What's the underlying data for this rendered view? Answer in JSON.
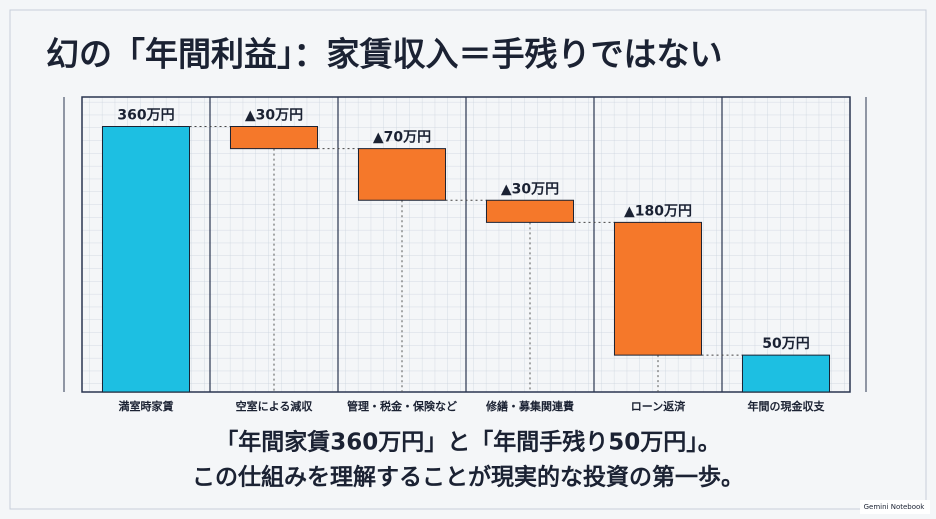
{
  "chart_data": {
    "type": "waterfall",
    "title": "幻の「年間利益」：家賃収入＝手残りではない",
    "categories": [
      "満室時家賃",
      "空室による減収",
      "管理・税金・保険など",
      "修繕・募集関連費",
      "ローン返済",
      "年間の現金収支"
    ],
    "values": [
      360,
      -30,
      -70,
      -30,
      -180,
      50
    ],
    "value_labels": [
      "360万円",
      "▲30万円",
      "▲70万円",
      "▲30万円",
      "▲180万円",
      "50万円"
    ],
    "colors": [
      "#1dbfe2",
      "#f5782a",
      "#f5782a",
      "#f5782a",
      "#f5782a",
      "#1dbfe2"
    ],
    "ylim": [
      0,
      400
    ],
    "caption": [
      "「年間家賃360万円」と「年間手残り50万円」。",
      "この仕組みを理解することが現実的な投資の第一歩。"
    ],
    "watermark": "Gemini Notebook"
  }
}
